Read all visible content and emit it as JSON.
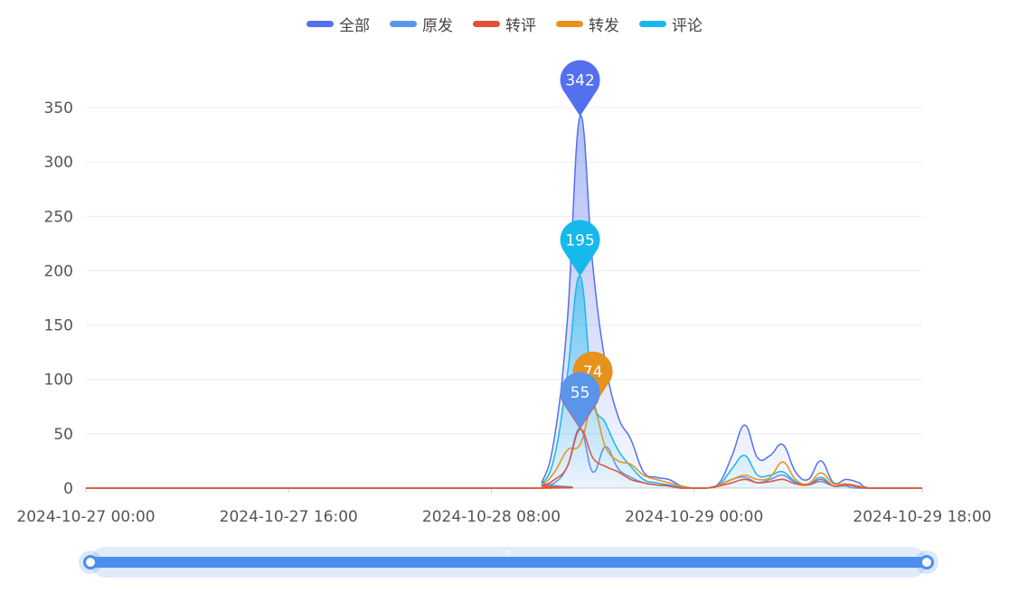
{
  "chart_data": {
    "type": "area",
    "x_unit": "hour",
    "x_start": "2024-10-27 00:00",
    "x_tick_labels": [
      "2024-10-27 00:00",
      "2024-10-27 16:00",
      "2024-10-28 08:00",
      "2024-10-29 00:00",
      "2024-10-29 18:00"
    ],
    "x_tick_hours": [
      0,
      16,
      32,
      48,
      66
    ],
    "x_range_hours": [
      0,
      66
    ],
    "ylim": [
      0,
      350
    ],
    "y_ticks": [
      0,
      50,
      100,
      150,
      200,
      250,
      300,
      350
    ],
    "grid": true,
    "legend_position": "top-center",
    "series": [
      {
        "name": "全部",
        "color": "#5470ee",
        "fill": true,
        "points": [
          [
            0,
            0
          ],
          [
            35,
            0
          ],
          [
            36,
            6
          ],
          [
            37,
            48
          ],
          [
            38,
            155
          ],
          [
            39,
            342
          ],
          [
            40,
            205
          ],
          [
            41,
            115
          ],
          [
            42,
            66
          ],
          [
            43,
            45
          ],
          [
            44,
            15
          ],
          [
            45,
            10
          ],
          [
            46,
            8
          ],
          [
            47,
            2
          ],
          [
            48,
            0
          ],
          [
            49,
            0
          ],
          [
            50,
            5
          ],
          [
            51,
            30
          ],
          [
            52,
            58
          ],
          [
            53,
            28
          ],
          [
            54,
            30
          ],
          [
            55,
            40
          ],
          [
            56,
            15
          ],
          [
            57,
            8
          ],
          [
            58,
            25
          ],
          [
            59,
            5
          ],
          [
            60,
            8
          ],
          [
            61,
            5
          ],
          [
            62,
            0
          ],
          [
            66,
            0
          ]
        ]
      },
      {
        "name": "原发",
        "color": "#5a95ea",
        "fill": false,
        "points": [
          [
            0,
            0
          ],
          [
            35,
            0
          ],
          [
            36,
            3
          ],
          [
            37,
            5
          ],
          [
            38,
            20
          ],
          [
            39,
            55
          ],
          [
            40,
            15
          ],
          [
            41,
            38
          ],
          [
            42,
            18
          ],
          [
            43,
            10
          ],
          [
            44,
            5
          ],
          [
            45,
            3
          ],
          [
            46,
            2
          ],
          [
            47,
            0
          ],
          [
            48,
            0
          ],
          [
            49,
            0
          ],
          [
            50,
            3
          ],
          [
            51,
            8
          ],
          [
            52,
            10
          ],
          [
            53,
            5
          ],
          [
            54,
            8
          ],
          [
            55,
            12
          ],
          [
            56,
            5
          ],
          [
            57,
            3
          ],
          [
            58,
            6
          ],
          [
            59,
            2
          ],
          [
            60,
            2
          ],
          [
            61,
            0
          ],
          [
            66,
            0
          ]
        ]
      },
      {
        "name": "转评",
        "color": "#e2503c",
        "fill": false,
        "points": [
          [
            0,
            0
          ],
          [
            35,
            0
          ],
          [
            36,
            2
          ],
          [
            37,
            8
          ],
          [
            38,
            20
          ],
          [
            39,
            54
          ],
          [
            40,
            28
          ],
          [
            41,
            20
          ],
          [
            42,
            15
          ],
          [
            43,
            8
          ],
          [
            44,
            5
          ],
          [
            45,
            3
          ],
          [
            46,
            2
          ],
          [
            47,
            0
          ],
          [
            48,
            0
          ],
          [
            49,
            0
          ],
          [
            50,
            2
          ],
          [
            51,
            5
          ],
          [
            52,
            8
          ],
          [
            53,
            5
          ],
          [
            54,
            6
          ],
          [
            55,
            8
          ],
          [
            56,
            4
          ],
          [
            57,
            3
          ],
          [
            58,
            8
          ],
          [
            59,
            2
          ],
          [
            60,
            3
          ],
          [
            61,
            1
          ],
          [
            62,
            0
          ],
          [
            66,
            0
          ]
        ]
      },
      {
        "name": "转发",
        "color": "#e6921c",
        "fill": false,
        "points": [
          [
            0,
            0
          ],
          [
            35,
            0
          ],
          [
            36,
            3
          ],
          [
            37,
            15
          ],
          [
            38,
            35
          ],
          [
            39,
            40
          ],
          [
            40,
            74
          ],
          [
            41,
            38
          ],
          [
            42,
            25
          ],
          [
            43,
            22
          ],
          [
            44,
            12
          ],
          [
            45,
            8
          ],
          [
            46,
            5
          ],
          [
            47,
            2
          ],
          [
            48,
            0
          ],
          [
            49,
            0
          ],
          [
            50,
            3
          ],
          [
            51,
            8
          ],
          [
            52,
            12
          ],
          [
            53,
            8
          ],
          [
            54,
            10
          ],
          [
            55,
            24
          ],
          [
            56,
            8
          ],
          [
            57,
            4
          ],
          [
            58,
            14
          ],
          [
            59,
            4
          ],
          [
            60,
            4
          ],
          [
            61,
            2
          ],
          [
            62,
            0
          ],
          [
            66,
            0
          ]
        ]
      },
      {
        "name": "评论",
        "color": "#16b9ec",
        "fill": true,
        "points": [
          [
            0,
            0
          ],
          [
            35,
            0
          ],
          [
            36,
            4
          ],
          [
            37,
            30
          ],
          [
            38,
            105
          ],
          [
            39,
            195
          ],
          [
            40,
            85
          ],
          [
            41,
            60
          ],
          [
            42,
            35
          ],
          [
            43,
            20
          ],
          [
            44,
            8
          ],
          [
            45,
            5
          ],
          [
            46,
            3
          ],
          [
            47,
            1
          ],
          [
            48,
            0
          ],
          [
            49,
            0
          ],
          [
            50,
            3
          ],
          [
            51,
            18
          ],
          [
            52,
            30
          ],
          [
            53,
            12
          ],
          [
            54,
            12
          ],
          [
            55,
            15
          ],
          [
            56,
            6
          ],
          [
            57,
            3
          ],
          [
            58,
            10
          ],
          [
            59,
            2
          ],
          [
            60,
            3
          ],
          [
            61,
            1
          ],
          [
            62,
            0
          ],
          [
            66,
            0
          ]
        ]
      }
    ],
    "markers": [
      {
        "series": "全部",
        "label": "342",
        "x": 39,
        "y": 342
      },
      {
        "series": "评论",
        "label": "195",
        "x": 39,
        "y": 195
      },
      {
        "series": "转发",
        "label": "74",
        "x": 40,
        "y": 74
      },
      {
        "series": "转评",
        "label": "54",
        "x": 39,
        "y": 54
      },
      {
        "series": "原发",
        "label": "55",
        "x": 39,
        "y": 55
      }
    ],
    "data_zoom": {
      "start_percent": 0,
      "end_percent": 100,
      "handle_label": "III"
    }
  }
}
